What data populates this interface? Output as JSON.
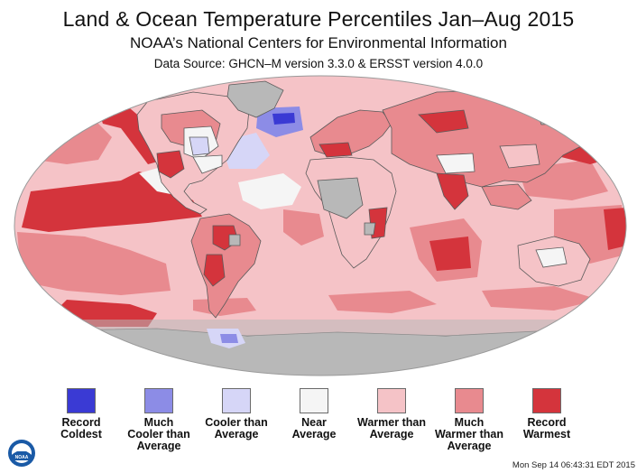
{
  "header": {
    "title": "Land & Ocean Temperature Percentiles Jan–Aug 2015",
    "subtitle": "NOAA’s National Centers for Environmental Information",
    "source": "Data Source: GHCN–M version 3.3.0 & ERSST version 4.0.0"
  },
  "colors": {
    "record_coldest": "#3a3ad4",
    "much_cooler": "#8c8ce6",
    "cooler": "#d6d6f7",
    "near_average": "#f5f5f5",
    "warmer": "#f5c3c7",
    "much_warmer": "#e88a8f",
    "record_warmest": "#d4343c",
    "no_data": "#b8b8b8",
    "border": "#5a5a5a"
  },
  "legend": [
    {
      "label": "Record\nColdest",
      "color": "#3a3ad4"
    },
    {
      "label": "Much\nCooler than\nAverage",
      "color": "#8c8ce6"
    },
    {
      "label": "Cooler than\nAverage",
      "color": "#d6d6f7"
    },
    {
      "label": "Near\nAverage",
      "color": "#f5f5f5"
    },
    {
      "label": "Warmer than\nAverage",
      "color": "#f5c3c7"
    },
    {
      "label": "Much\nWarmer than\nAverage",
      "color": "#e88a8f"
    },
    {
      "label": "Record\nWarmest",
      "color": "#d4343c"
    }
  ],
  "footer": {
    "logo_text": "NOAA",
    "timestamp": "Mon Sep 14 06:43:31 EDT 2015"
  }
}
